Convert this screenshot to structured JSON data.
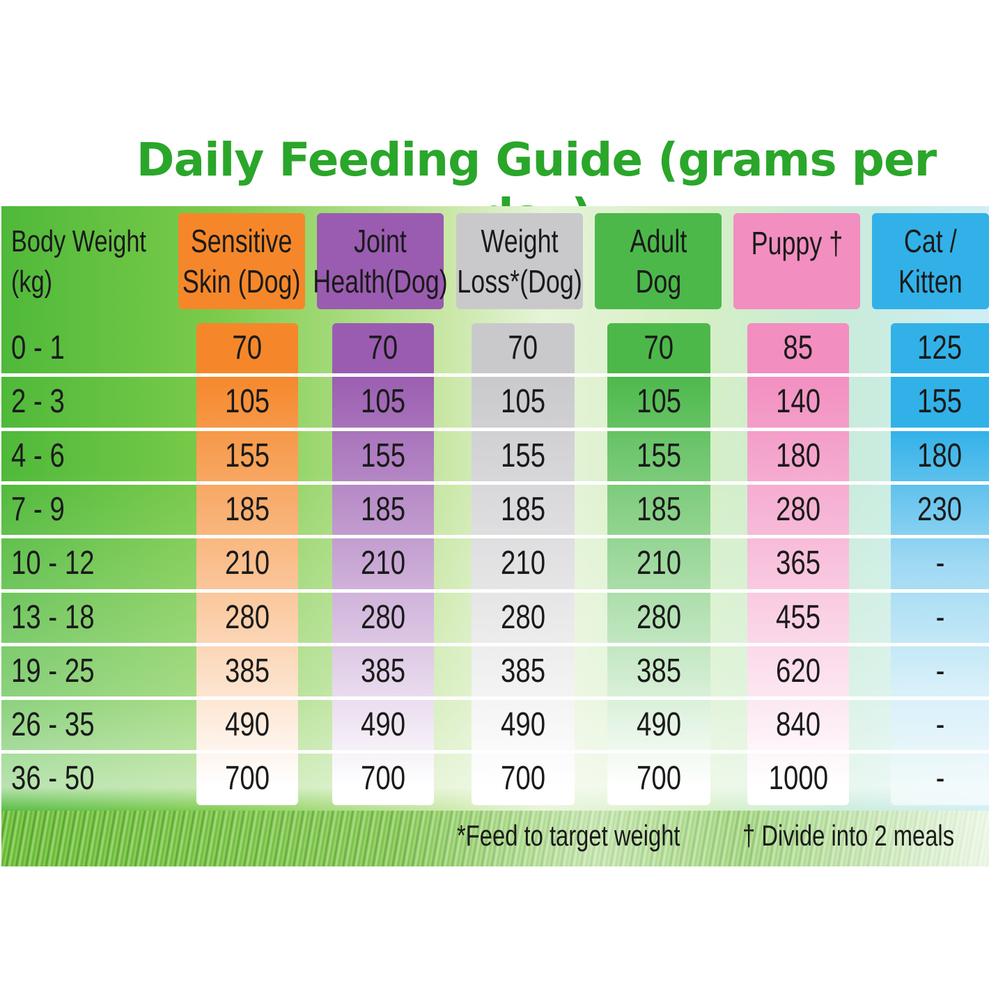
{
  "title": "Daily Feeding Guide (grams per day)",
  "body_weight_header": [
    "Body Weight",
    "(kg)"
  ],
  "columns": [
    {
      "id": "sensitive-skin",
      "header": [
        "Sensitive",
        "Skin (Dog)"
      ],
      "color": "#f5872a",
      "fade": "#ffffff"
    },
    {
      "id": "joint-health",
      "header": [
        "Joint",
        "Health(Dog)"
      ],
      "color": "#9a5cb0",
      "fade": "#ffffff"
    },
    {
      "id": "weight-loss",
      "header": [
        "Weight",
        "Loss*(Dog)"
      ],
      "color": "#c9c9cc",
      "fade": "#ffffff"
    },
    {
      "id": "adult-dog",
      "header": [
        "Adult",
        "Dog"
      ],
      "color": "#4cb84a",
      "fade": "#ffffff"
    },
    {
      "id": "puppy",
      "header": [
        "Puppy †"
      ],
      "color": "#f28ec0",
      "fade": "#ffffff"
    },
    {
      "id": "cat-kitten",
      "header": [
        "Cat /",
        "Kitten"
      ],
      "color": "#32b1e8",
      "fade": "#ffffff"
    }
  ],
  "rows": [
    {
      "weight": "0 - 1",
      "values": [
        "70",
        "70",
        "70",
        "70",
        "85",
        "125"
      ]
    },
    {
      "weight": "2 - 3",
      "values": [
        "105",
        "105",
        "105",
        "105",
        "140",
        "155"
      ]
    },
    {
      "weight": "4 - 6",
      "values": [
        "155",
        "155",
        "155",
        "155",
        "180",
        "180"
      ]
    },
    {
      "weight": "7 - 9",
      "values": [
        "185",
        "185",
        "185",
        "185",
        "280",
        "230"
      ]
    },
    {
      "weight": "10 - 12",
      "values": [
        "210",
        "210",
        "210",
        "210",
        "365",
        "-"
      ]
    },
    {
      "weight": "13 - 18",
      "values": [
        "280",
        "280",
        "280",
        "280",
        "455",
        "-"
      ]
    },
    {
      "weight": "19 - 25",
      "values": [
        "385",
        "385",
        "385",
        "385",
        "620",
        "-"
      ]
    },
    {
      "weight": "26 - 35",
      "values": [
        "490",
        "490",
        "490",
        "490",
        "840",
        "-"
      ]
    },
    {
      "weight": "36 - 50",
      "values": [
        "700",
        "700",
        "700",
        "700",
        "1000",
        "-"
      ]
    }
  ],
  "footnotes": {
    "weight_loss": "*Feed to target weight",
    "puppy": "† Divide into 2 meals"
  }
}
